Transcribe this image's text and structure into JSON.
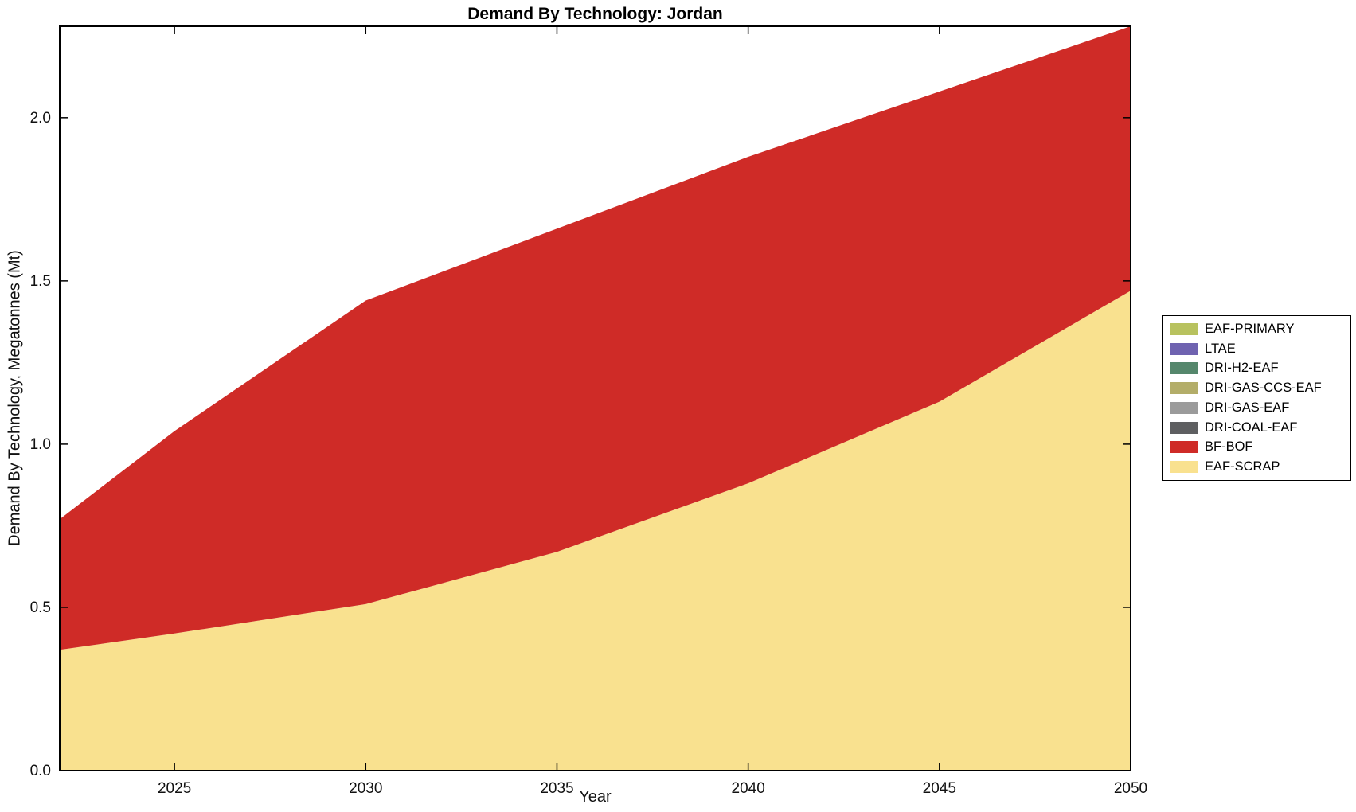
{
  "title": "Demand By Technology: Jordan",
  "chart_data": {
    "type": "area",
    "title": "Demand By Technology: Jordan",
    "xlabel": "Year",
    "ylabel": "Demand By Technology, Megatonnes (Mt)",
    "x": [
      2022,
      2025,
      2030,
      2035,
      2040,
      2045,
      2050
    ],
    "xlim": [
      2022,
      2050
    ],
    "ylim": [
      0,
      2.28
    ],
    "xticks": [
      2025,
      2030,
      2035,
      2040,
      2045,
      2050
    ],
    "yticks": [
      "0.0",
      "0.5",
      "1.0",
      "1.5",
      "2.0"
    ],
    "grid": false,
    "legend_position": "right-outside",
    "series": [
      {
        "name": "EAF-SCRAP",
        "color": "#f9e18f",
        "values": [
          0.37,
          0.42,
          0.51,
          0.67,
          0.88,
          1.13,
          1.47
        ]
      },
      {
        "name": "BF-BOF",
        "color": "#cf2b27",
        "values": [
          0.4,
          0.62,
          0.93,
          0.99,
          1.0,
          0.95,
          0.81
        ]
      },
      {
        "name": "DRI-COAL-EAF",
        "color": "#5e5f61",
        "values": [
          0,
          0,
          0,
          0,
          0,
          0,
          0
        ]
      },
      {
        "name": "DRI-GAS-EAF",
        "color": "#9b9b9b",
        "values": [
          0,
          0,
          0,
          0,
          0,
          0,
          0
        ]
      },
      {
        "name": "DRI-GAS-CCS-EAF",
        "color": "#b3ad69",
        "values": [
          0,
          0,
          0,
          0,
          0,
          0,
          0
        ]
      },
      {
        "name": "DRI-H2-EAF",
        "color": "#55876c",
        "values": [
          0,
          0,
          0,
          0,
          0,
          0,
          0
        ]
      },
      {
        "name": "LTAE",
        "color": "#6f63b0",
        "values": [
          0,
          0,
          0,
          0,
          0,
          0,
          0
        ]
      },
      {
        "name": "EAF-PRIMARY",
        "color": "#b8c25f",
        "values": [
          0,
          0,
          0,
          0,
          0,
          0,
          0
        ]
      }
    ],
    "legend": {
      "items": [
        {
          "label": "EAF-PRIMARY",
          "color": "#b8c25f"
        },
        {
          "label": "LTAE",
          "color": "#6f63b0"
        },
        {
          "label": "DRI-H2-EAF",
          "color": "#55876c"
        },
        {
          "label": "DRI-GAS-CCS-EAF",
          "color": "#b3ad69"
        },
        {
          "label": "DRI-GAS-EAF",
          "color": "#9b9b9b"
        },
        {
          "label": "DRI-COAL-EAF",
          "color": "#5e5f61"
        },
        {
          "label": "BF-BOF",
          "color": "#cf2b27"
        },
        {
          "label": "EAF-SCRAP",
          "color": "#f9e18f"
        }
      ]
    }
  }
}
